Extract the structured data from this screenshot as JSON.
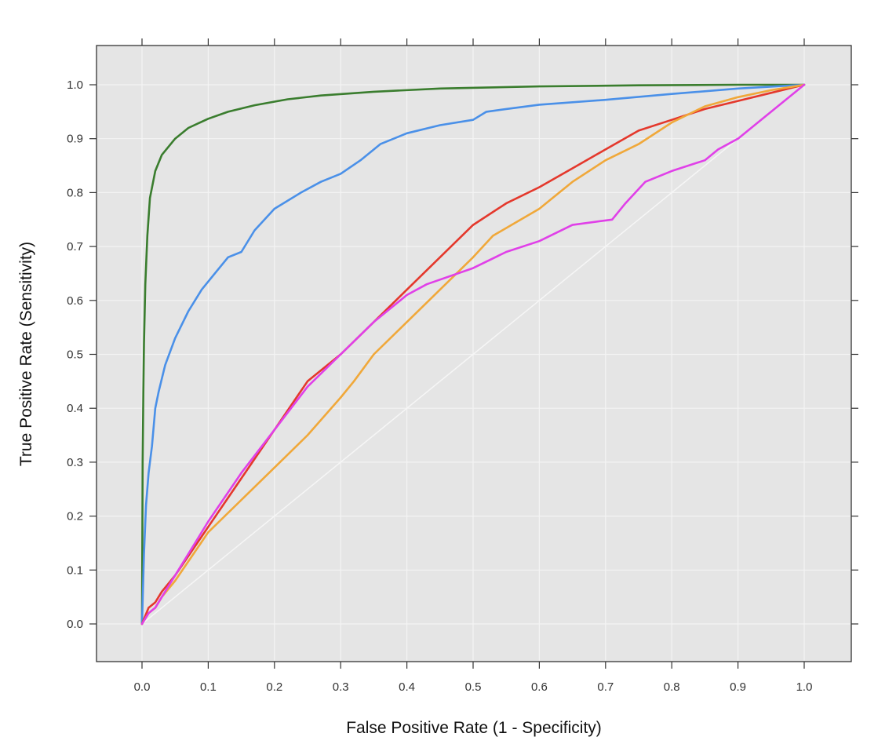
{
  "chart_data": {
    "type": "line",
    "title": "",
    "xlabel": "False Positive Rate (1 - Specificity)",
    "ylabel": "True Positive Rate (Sensitivity)",
    "xlim": [
      -0.07,
      1.07
    ],
    "ylim": [
      -0.07,
      1.07
    ],
    "xticks": [
      "0.0",
      "0.1",
      "0.2",
      "0.3",
      "0.4",
      "0.5",
      "0.6",
      "0.7",
      "0.8",
      "0.9",
      "1.0"
    ],
    "yticks": [
      "0.0",
      "0.1",
      "0.2",
      "0.3",
      "0.4",
      "0.5",
      "0.6",
      "0.7",
      "0.8",
      "0.9",
      "1.0"
    ],
    "grid": true,
    "panel_color": "#e5e5e5",
    "grid_color": "#f4f4f4",
    "diagonal": {
      "x": [
        0,
        1
      ],
      "y": [
        0,
        1
      ],
      "color": "#f6f6f6"
    },
    "series": [
      {
        "color": "#3a7d2e",
        "x": [
          0,
          0.0005,
          0.001,
          0.002,
          0.003,
          0.005,
          0.008,
          0.012,
          0.02,
          0.03,
          0.05,
          0.07,
          0.1,
          0.13,
          0.17,
          0.22,
          0.27,
          0.35,
          0.45,
          0.6,
          0.75,
          0.9,
          1.0
        ],
        "y": [
          0,
          0.15,
          0.3,
          0.43,
          0.52,
          0.63,
          0.72,
          0.79,
          0.84,
          0.87,
          0.9,
          0.92,
          0.937,
          0.95,
          0.962,
          0.973,
          0.98,
          0.987,
          0.993,
          0.997,
          0.999,
          1.0,
          1.0
        ]
      },
      {
        "color": "#4a90e8",
        "x": [
          0,
          0.003,
          0.006,
          0.01,
          0.015,
          0.02,
          0.025,
          0.035,
          0.05,
          0.07,
          0.09,
          0.11,
          0.13,
          0.15,
          0.17,
          0.2,
          0.24,
          0.27,
          0.3,
          0.33,
          0.36,
          0.4,
          0.45,
          0.5,
          0.52,
          0.55,
          0.6,
          0.7,
          0.8,
          0.9,
          1.0
        ],
        "y": [
          0,
          0.13,
          0.22,
          0.28,
          0.33,
          0.4,
          0.43,
          0.48,
          0.53,
          0.58,
          0.62,
          0.65,
          0.68,
          0.69,
          0.73,
          0.77,
          0.8,
          0.82,
          0.835,
          0.86,
          0.89,
          0.91,
          0.925,
          0.935,
          0.95,
          0.955,
          0.963,
          0.972,
          0.983,
          0.993,
          1.0
        ]
      },
      {
        "color": "#e4382c",
        "x": [
          0,
          0.01,
          0.02,
          0.03,
          0.05,
          0.1,
          0.15,
          0.2,
          0.25,
          0.3,
          0.35,
          0.4,
          0.45,
          0.5,
          0.55,
          0.6,
          0.65,
          0.7,
          0.75,
          0.8,
          0.85,
          0.9,
          0.95,
          1.0
        ],
        "y": [
          0,
          0.03,
          0.04,
          0.06,
          0.09,
          0.18,
          0.27,
          0.36,
          0.45,
          0.5,
          0.56,
          0.62,
          0.68,
          0.74,
          0.78,
          0.81,
          0.845,
          0.88,
          0.915,
          0.935,
          0.955,
          0.97,
          0.985,
          1.0
        ]
      },
      {
        "color": "#f0a83a",
        "x": [
          0,
          0.01,
          0.02,
          0.03,
          0.05,
          0.1,
          0.15,
          0.2,
          0.25,
          0.3,
          0.32,
          0.35,
          0.4,
          0.45,
          0.5,
          0.53,
          0.6,
          0.65,
          0.7,
          0.75,
          0.8,
          0.85,
          0.9,
          0.95,
          1.0
        ],
        "y": [
          0,
          0.02,
          0.03,
          0.05,
          0.08,
          0.17,
          0.23,
          0.29,
          0.35,
          0.42,
          0.45,
          0.5,
          0.56,
          0.62,
          0.68,
          0.72,
          0.77,
          0.82,
          0.86,
          0.89,
          0.93,
          0.96,
          0.977,
          0.99,
          1.0
        ]
      },
      {
        "color": "#e040e8",
        "x": [
          0,
          0.01,
          0.02,
          0.03,
          0.05,
          0.1,
          0.15,
          0.2,
          0.25,
          0.3,
          0.35,
          0.4,
          0.43,
          0.5,
          0.55,
          0.6,
          0.65,
          0.71,
          0.73,
          0.76,
          0.8,
          0.85,
          0.87,
          0.9,
          0.93,
          0.95,
          0.97,
          1.0
        ],
        "y": [
          0,
          0.02,
          0.03,
          0.05,
          0.09,
          0.19,
          0.28,
          0.36,
          0.44,
          0.5,
          0.56,
          0.61,
          0.63,
          0.66,
          0.69,
          0.71,
          0.74,
          0.75,
          0.78,
          0.82,
          0.84,
          0.86,
          0.88,
          0.9,
          0.93,
          0.95,
          0.97,
          1.0
        ]
      }
    ]
  }
}
